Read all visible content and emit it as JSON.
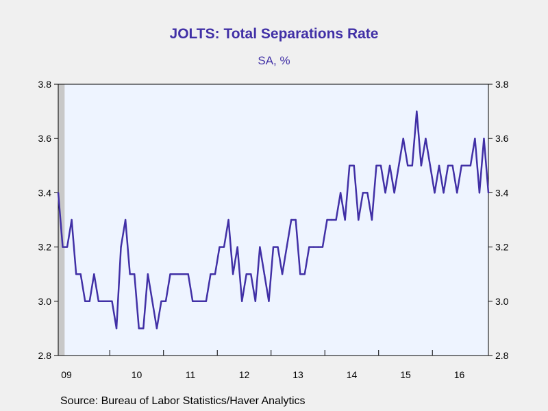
{
  "chart_data": {
    "type": "line",
    "title": "JOLTS: Total Separations Rate",
    "subtitle": "SA, %",
    "source": "Source:  Bureau of Labor Statistics/Haver Analytics",
    "ylim": [
      2.8,
      3.8
    ],
    "y_ticks": [
      "3.8",
      "3.6",
      "3.4",
      "3.2",
      "3.0",
      "2.8"
    ],
    "y_tick_values": [
      3.8,
      3.6,
      3.4,
      3.2,
      3.0,
      2.8
    ],
    "x_labels": [
      "09",
      "10",
      "11",
      "12",
      "13",
      "14",
      "15",
      "16"
    ],
    "x_start": "2009-01",
    "recession_shading_months": [
      "2009-01",
      "2009-06"
    ],
    "grid": false,
    "line_color": "#4130a6",
    "plot_background": "#eef4ff",
    "recession_color": "#c8c8c8",
    "series": [
      {
        "values": [
          3.4,
          3.2,
          3.2,
          3.3,
          3.1,
          3.1,
          3.0,
          3.0,
          3.1,
          3.0,
          3.0,
          3.0,
          3.0,
          2.9,
          3.2,
          3.3,
          3.1,
          3.1,
          2.9,
          2.9,
          3.1,
          3.0,
          2.9,
          3.0,
          3.0,
          3.1,
          3.1,
          3.1,
          3.1,
          3.1,
          3.0,
          3.0,
          3.0,
          3.0,
          3.1,
          3.1,
          3.2,
          3.2,
          3.3,
          3.1,
          3.2,
          3.0,
          3.1,
          3.1,
          3.0,
          3.2,
          3.1,
          3.0,
          3.2,
          3.2,
          3.1,
          3.2,
          3.3,
          3.3,
          3.1,
          3.1,
          3.2,
          3.2,
          3.2,
          3.2,
          3.3,
          3.3,
          3.3,
          3.4,
          3.3,
          3.5,
          3.5,
          3.3,
          3.4,
          3.4,
          3.3,
          3.5,
          3.5,
          3.4,
          3.5,
          3.4,
          3.5,
          3.6,
          3.5,
          3.5,
          3.7,
          3.5,
          3.6,
          3.5,
          3.4,
          3.5,
          3.4,
          3.5,
          3.5,
          3.4,
          3.5,
          3.5,
          3.5,
          3.6,
          3.4,
          3.6,
          3.4
        ]
      }
    ]
  }
}
